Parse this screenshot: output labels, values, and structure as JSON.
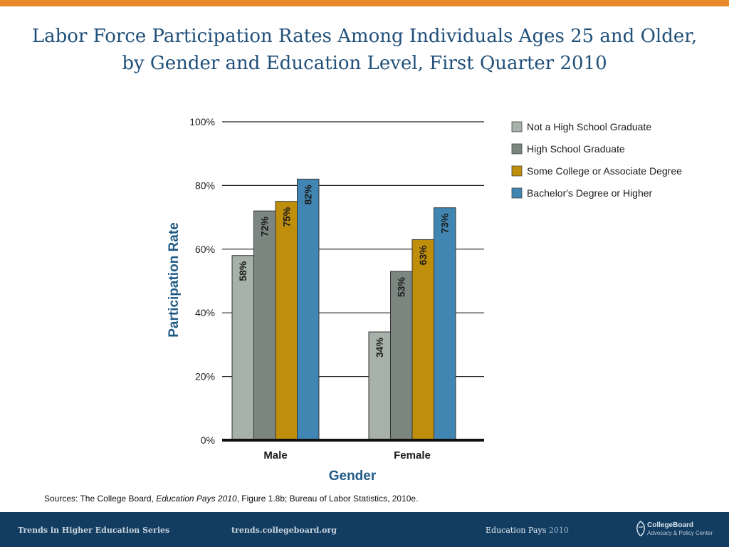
{
  "title": "Labor Force Participation Rates Among Individuals Ages 25 and Older, by Gender and Education Level, First Quarter 2010",
  "source": {
    "prefix": "Sources: The College Board, ",
    "italic": "Education Pays 2010",
    "suffix": ", Figure 1.8b; Bureau of Labor Statistics, 2010e."
  },
  "footer": {
    "series": "Trends in Higher Education Series",
    "site": "trends.collegeboard.org",
    "pays_label": "Education Pays",
    "pays_year": "2010",
    "logo_brand": "CollegeBoard",
    "logo_sub": "Advocacy & Policy Center"
  },
  "colors": {
    "top_bar": "#e8892a",
    "title": "#1f4f7a",
    "footer": "#123d61"
  },
  "chart_data": {
    "type": "bar",
    "title": "",
    "xlabel": "Gender",
    "ylabel": "Participation Rate",
    "ylim": [
      0,
      100
    ],
    "yticks": [
      0,
      20,
      40,
      60,
      80,
      100
    ],
    "ytick_labels": [
      "0%",
      "20%",
      "40%",
      "60%",
      "80%",
      "100%"
    ],
    "categories": [
      "Male",
      "Female"
    ],
    "grid": true,
    "legend_position": "top-right",
    "series": [
      {
        "name": "Not a High School Graduate",
        "color": "#a6b1aa",
        "values": [
          58,
          34
        ],
        "labels": [
          "58%",
          "34%"
        ]
      },
      {
        "name": "High School Graduate",
        "color": "#7b8680",
        "values": [
          72,
          53
        ],
        "labels": [
          "72%",
          "53%"
        ]
      },
      {
        "name": "Some College or Associate Degree",
        "color": "#bf8f0c",
        "values": [
          75,
          63
        ],
        "labels": [
          "75%",
          "63%"
        ]
      },
      {
        "name": "Bachelor's Degree or Higher",
        "color": "#4186b2",
        "values": [
          82,
          73
        ],
        "labels": [
          "82%",
          "73%"
        ]
      }
    ]
  }
}
